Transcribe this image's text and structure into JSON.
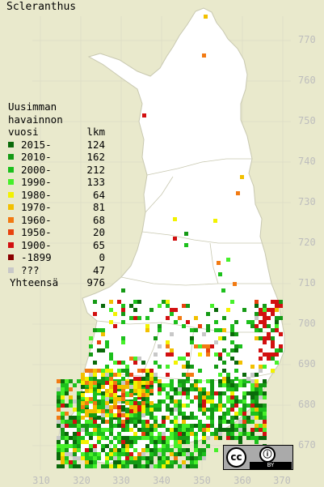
{
  "title": "Scleranthus",
  "legend": {
    "heading": [
      "Uusimman",
      "havainnon",
      "vuosi"
    ],
    "count_heading": "lkm",
    "rows": [
      {
        "label": "2015-",
        "count": "124",
        "color": "#0a6a0a"
      },
      {
        "label": "2010-",
        "count": "162",
        "color": "#159a15"
      },
      {
        "label": "2000-",
        "count": "212",
        "color": "#1cc01c"
      },
      {
        "label": "1990-",
        "count": "133",
        "color": "#46f02a"
      },
      {
        "label": "1980-",
        "count": "64",
        "color": "#f2f200"
      },
      {
        "label": "1970-",
        "count": "81",
        "color": "#f2c000"
      },
      {
        "label": "1960-",
        "count": "68",
        "color": "#f27a12"
      },
      {
        "label": "1950-",
        "count": "20",
        "color": "#e8420e"
      },
      {
        "label": "1900-",
        "count": "65",
        "color": "#d21010"
      },
      {
        "label": "-1899",
        "count": "0",
        "color": "#8a0000"
      },
      {
        "label": "???",
        "count": "47",
        "color": "#c8c8c8"
      }
    ],
    "total_label": "Yhteensä",
    "total_count": "976"
  },
  "axes": {
    "lat_labels": [
      "770",
      "760",
      "750",
      "740",
      "730",
      "720",
      "710",
      "700",
      "690",
      "680",
      "670"
    ],
    "lon_labels": [
      "310",
      "320",
      "330",
      "340",
      "350",
      "360",
      "370"
    ]
  },
  "license": {
    "cc": "cc",
    "by_icon": "person-icon",
    "by": "BY"
  },
  "colors": {
    "background": "#e9e9cc",
    "land": "#ffffff",
    "grid": "#d8d8c0",
    "border": "#bdbdbd"
  }
}
